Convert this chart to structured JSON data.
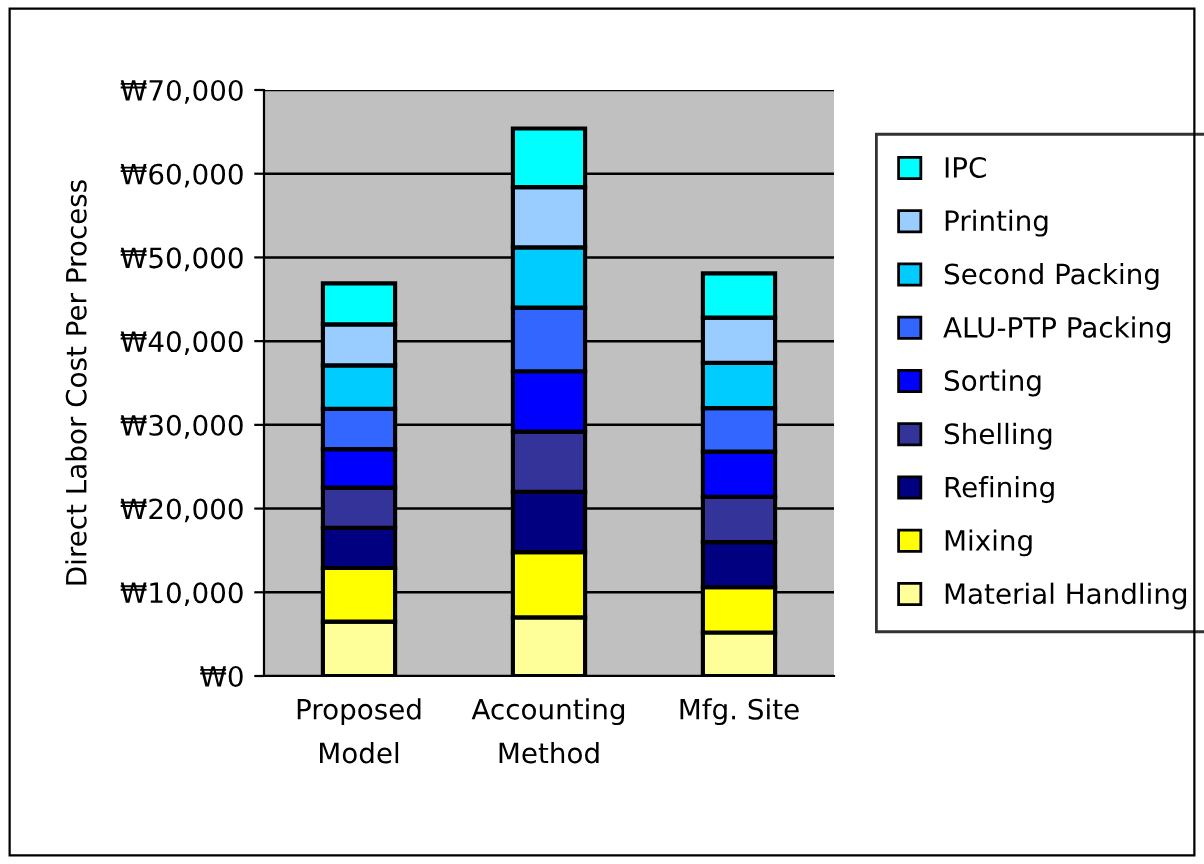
{
  "chart_data": {
    "type": "bar",
    "stacked": true,
    "ylabel": "Direct Labor Cost Per Process",
    "categories": [
      "Proposed\nModel",
      "Accounting\nMethod",
      "Mfg. Site"
    ],
    "series": [
      {
        "name": "Material Handling",
        "color": "#ffff99",
        "values": [
          6500,
          7000,
          5200
        ]
      },
      {
        "name": "Mixing",
        "color": "#ffff00",
        "values": [
          6400,
          7800,
          5400
        ]
      },
      {
        "name": "Refining",
        "color": "#000080",
        "values": [
          4800,
          7200,
          5400
        ]
      },
      {
        "name": "Shelling",
        "color": "#333399",
        "values": [
          4800,
          7200,
          5400
        ]
      },
      {
        "name": "Sorting",
        "color": "#0000ff",
        "values": [
          4600,
          7200,
          5400
        ]
      },
      {
        "name": "ALU-PTP Packing",
        "color": "#3366ff",
        "values": [
          4800,
          7600,
          5200
        ]
      },
      {
        "name": "Second Packing",
        "color": "#00ccff",
        "values": [
          5200,
          7200,
          5400
        ]
      },
      {
        "name": "Printing",
        "color": "#99ccff",
        "values": [
          4900,
          7200,
          5400
        ]
      },
      {
        "name": "IPC",
        "color": "#00ffff",
        "values": [
          4900,
          7000,
          5300
        ]
      }
    ],
    "ylim": [
      0,
      70000
    ],
    "yticks": [
      {
        "value": 0,
        "label": "₩0"
      },
      {
        "value": 10000,
        "label": "₩10,000"
      },
      {
        "value": 20000,
        "label": "₩20,000"
      },
      {
        "value": 30000,
        "label": "₩30,000"
      },
      {
        "value": 40000,
        "label": "₩40,000"
      },
      {
        "value": 50000,
        "label": "₩50,000"
      },
      {
        "value": 60000,
        "label": "₩60,000"
      },
      {
        "value": 70000,
        "label": "₩70,000"
      }
    ],
    "grid": "y",
    "legend": "right"
  }
}
